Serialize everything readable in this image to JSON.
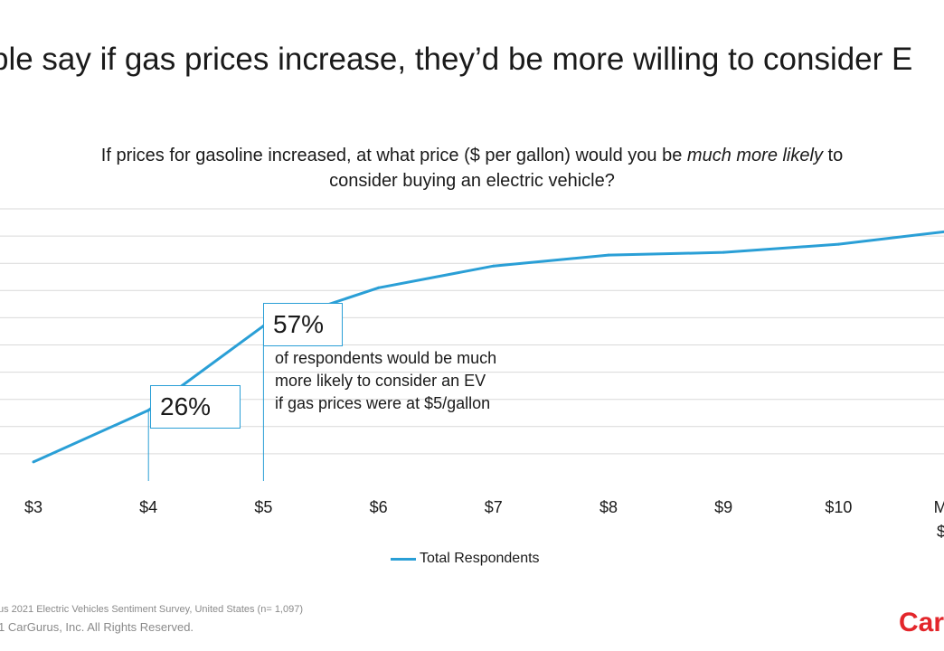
{
  "headline": "ple say if gas prices increase, they’d be more willing to consider E",
  "subtitle": {
    "part1": "If prices for gasoline increased, at what price ($ per gallon) would you be ",
    "italic": "much more likely",
    "part2": " to",
    "line2": "consider buying an electric vehicle?"
  },
  "callouts": {
    "c4": "26%",
    "c5": "57%",
    "note_line1": "of respondents would be much",
    "note_line2": "more likely to consider an EV",
    "note_line3": "if gas prices were at $5/gallon"
  },
  "legend": {
    "label": "Total Respondents"
  },
  "footer": {
    "source": "us 2021 Electric Vehicles Sentiment Survey, United States (n= 1,097)",
    "copyright": "1 CarGurus, Inc.  All Rights Reserved.",
    "logo": "Car"
  },
  "colors": {
    "line": "#2a9fd6",
    "grid": "#d9d9d9",
    "logo": "#e3262b"
  },
  "chart_data": {
    "type": "line",
    "categories": [
      "$3",
      "$4",
      "$5",
      "$6",
      "$7",
      "$8",
      "$9",
      "$10",
      "Mor"
    ],
    "extra_tick_line": "$",
    "series": [
      {
        "name": "Total Respondents",
        "values": [
          7,
          26,
          57,
          71,
          79,
          83,
          84,
          87,
          92
        ]
      }
    ],
    "ylim": [
      0,
      100
    ],
    "grid": true,
    "legend_position": "bottom",
    "annotations": [
      {
        "category": "$4",
        "label": "26%"
      },
      {
        "category": "$5",
        "label": "57%"
      }
    ]
  }
}
